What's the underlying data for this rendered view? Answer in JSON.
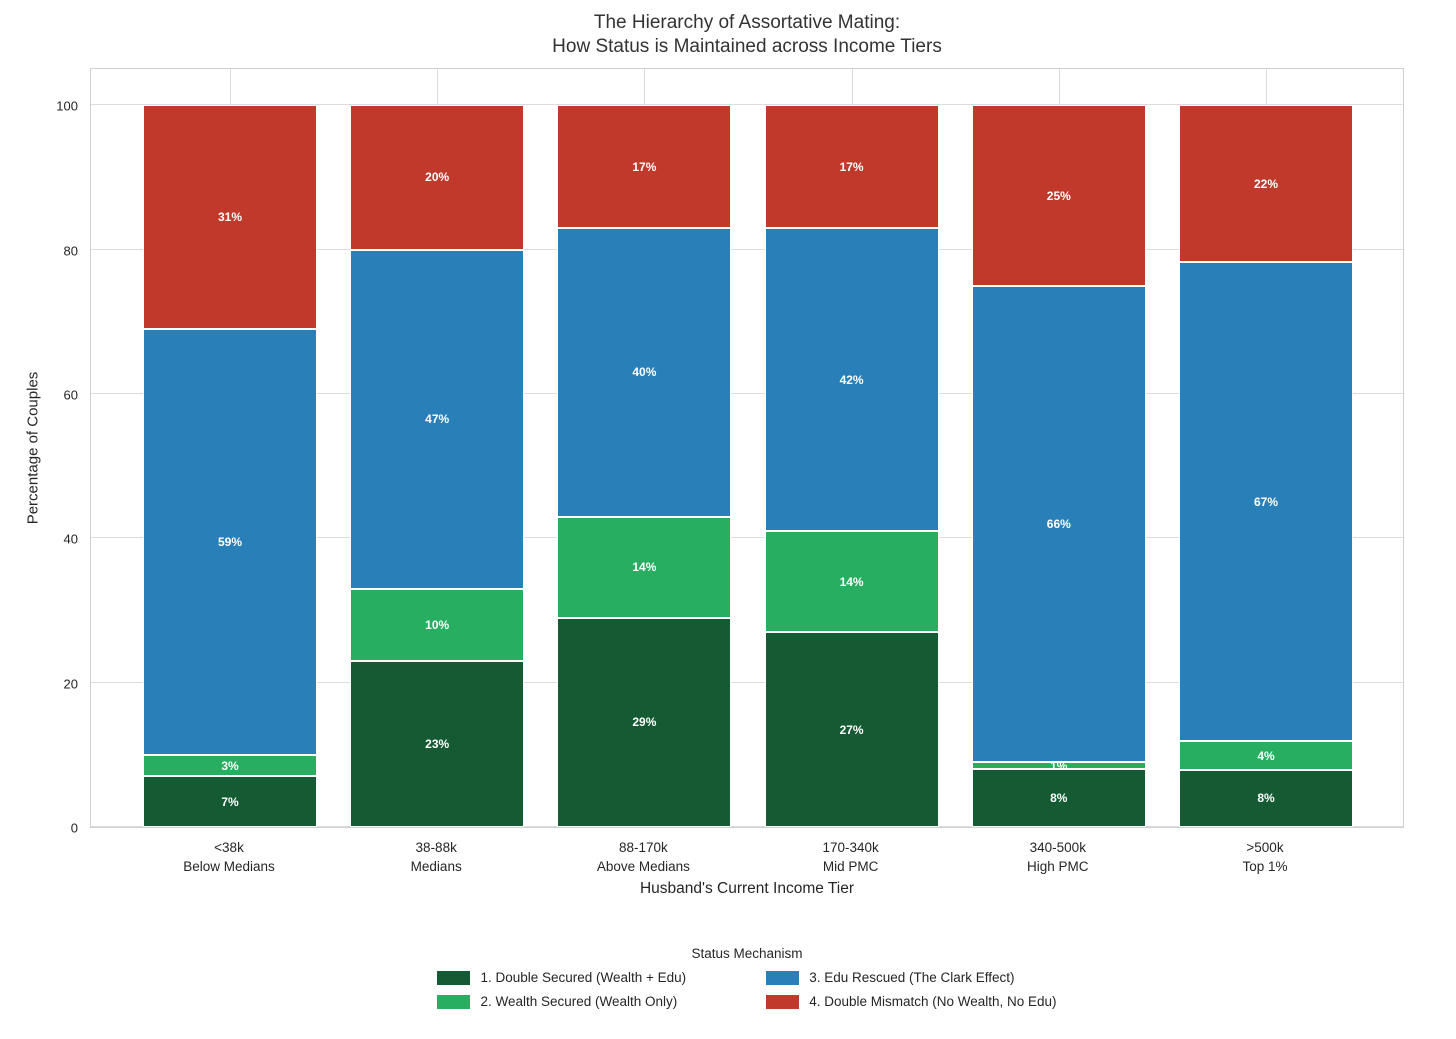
{
  "title": {
    "line1": "The Hierarchy of Assortative Mating:",
    "line2": "How Status is Maintained across Income Tiers"
  },
  "chart_data": {
    "type": "bar",
    "stacked": true,
    "percent_stacked": true,
    "title": "The Hierarchy of Assortative Mating: How Status is Maintained across Income Tiers",
    "xlabel": "Husband's Current Income Tier",
    "ylabel": "Percentage of Couples",
    "ylim": [
      0,
      105.3
    ],
    "y_ticks": [
      0,
      20,
      40,
      60,
      80,
      100
    ],
    "grid": true,
    "legend_title": "Status Mechanism",
    "legend_position": "bottom",
    "value_suffix": "%",
    "categories": [
      {
        "tier": "<38k",
        "label": "Below Medians"
      },
      {
        "tier": "38-88k",
        "label": "Medians"
      },
      {
        "tier": "88-170k",
        "label": "Above Medians"
      },
      {
        "tier": "170-340k",
        "label": "Mid PMC"
      },
      {
        "tier": "340-500k",
        "label": "High PMC"
      },
      {
        "tier": ">500k",
        "label": "Top 1%"
      }
    ],
    "series": [
      {
        "name": "1. Double Secured (Wealth + Edu)",
        "color": "#145a32",
        "values": [
          7,
          23,
          29,
          27,
          8,
          8
        ]
      },
      {
        "name": "2. Wealth Secured (Wealth Only)",
        "color": "#27ae60",
        "values": [
          3,
          10,
          14,
          14,
          1,
          4
        ]
      },
      {
        "name": "3. Edu Rescued (The Clark Effect)",
        "color": "#2980b9",
        "values": [
          59,
          47,
          40,
          42,
          66,
          67
        ]
      },
      {
        "name": "4. Double Mismatch (No Wealth, No Edu)",
        "color": "#c0392b",
        "values": [
          31,
          20,
          17,
          17,
          25,
          22
        ]
      }
    ]
  }
}
